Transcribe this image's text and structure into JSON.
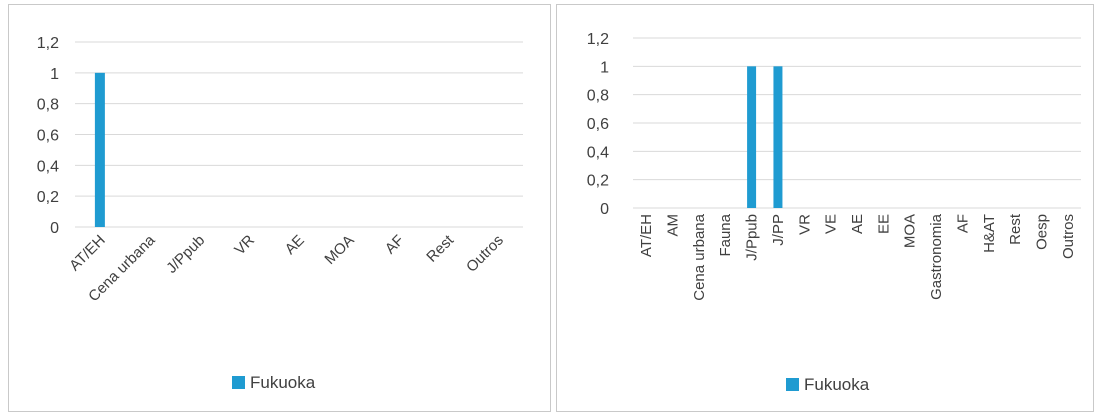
{
  "colors": {
    "bar": "#1f9bd1",
    "grid": "#d9d9d9",
    "text": "#404040",
    "border": "#c9c9c9"
  },
  "chart_data": [
    {
      "type": "bar",
      "title": "",
      "xlabel": "",
      "ylabel": "",
      "ylim": [
        0,
        1.2
      ],
      "yticks": [
        "0",
        "0,2",
        "0,4",
        "0,6",
        "0,8",
        "1",
        "1,2"
      ],
      "grid": true,
      "legend_position": "bottom",
      "categories": [
        "AT/EH",
        "Cena urbana",
        "J/Ppub",
        "VR",
        "AE",
        "MOA",
        "AF",
        "Rest",
        "Outros"
      ],
      "series": [
        {
          "name": "Fukuoka",
          "values": [
            1,
            0,
            0,
            0,
            0,
            0,
            0,
            0,
            0
          ]
        }
      ]
    },
    {
      "type": "bar",
      "title": "",
      "xlabel": "",
      "ylabel": "",
      "ylim": [
        0,
        1.2
      ],
      "yticks": [
        "0",
        "0,2",
        "0,4",
        "0,6",
        "0,8",
        "1",
        "1,2"
      ],
      "grid": true,
      "legend_position": "bottom",
      "categories": [
        "AT/EH",
        "AM",
        "Cena urbana",
        "Fauna",
        "J/Ppub",
        "J/PP",
        "VR",
        "VE",
        "AE",
        "EE",
        "MOA",
        "Gastronomia",
        "AF",
        "H&AT",
        "Rest",
        "Oesp",
        "Outros"
      ],
      "series": [
        {
          "name": "Fukuoka",
          "values": [
            0,
            0,
            0,
            0,
            1,
            1,
            0,
            0,
            0,
            0,
            0,
            0,
            0,
            0,
            0,
            0,
            0
          ]
        }
      ]
    }
  ]
}
